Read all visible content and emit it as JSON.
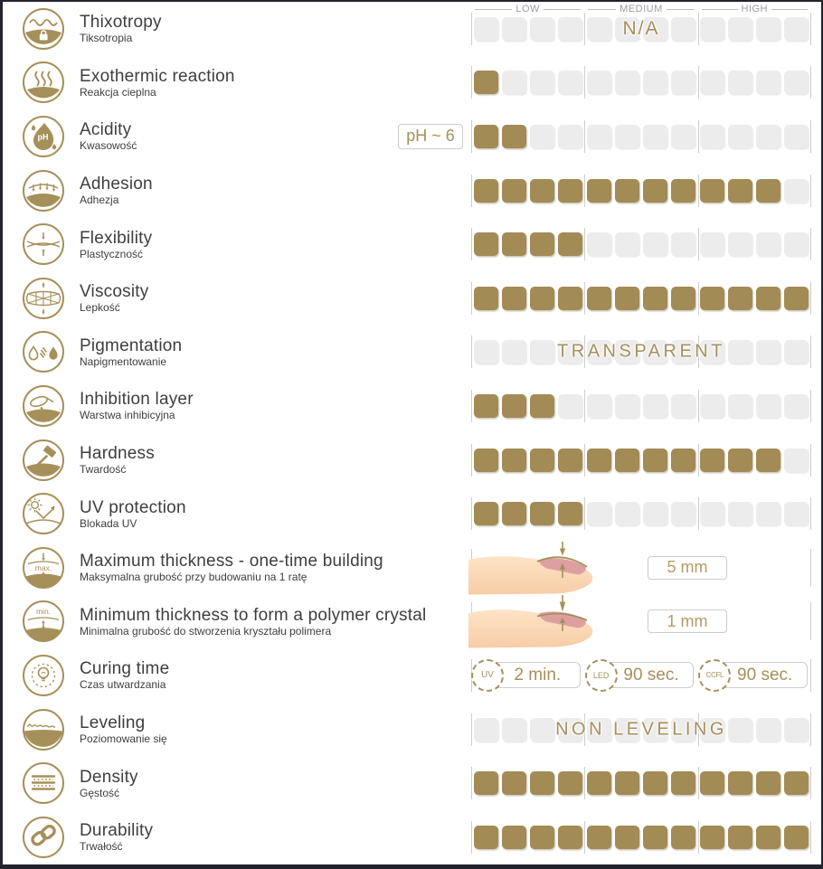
{
  "colors": {
    "gold": "#a28b55",
    "gold_text": "#a6905a",
    "empty_square": "#ececec",
    "title_text": "#3e3e3e",
    "header_text": "#9d9d9d",
    "divider": "#cdcdcd",
    "frame": "#23232e"
  },
  "header": {
    "low": "LOW",
    "medium": "MEDIUM",
    "high": "HIGH"
  },
  "icon_labels": {
    "acidity": "pH",
    "max": "max.",
    "min": "min."
  },
  "rows": [
    {
      "icon": "thixotropy-icon",
      "title": "Thixotropy",
      "subtitle": "Tiksotropia",
      "type": "bar",
      "filled": 0,
      "total": 12,
      "overlay": "N/A",
      "overlay_span": "medium"
    },
    {
      "icon": "exothermic-reaction-icon",
      "title": "Exothermic reaction",
      "subtitle": "Reakcja cieplna",
      "type": "bar",
      "filled": 1,
      "total": 12
    },
    {
      "icon": "acidity-icon",
      "title": "Acidity",
      "subtitle": "Kwasowość",
      "type": "bar",
      "filled": 2,
      "total": 12,
      "prefix_label": "pH ~ 6"
    },
    {
      "icon": "adhesion-icon",
      "title": "Adhesion",
      "subtitle": "Adhezja",
      "type": "bar",
      "filled": 11,
      "total": 12
    },
    {
      "icon": "flexibility-icon",
      "title": "Flexibility",
      "subtitle": "Plastyczność",
      "type": "bar",
      "filled": 4,
      "total": 12
    },
    {
      "icon": "viscosity-icon",
      "title": "Viscosity",
      "subtitle": "Lepkość",
      "type": "bar",
      "filled": 12,
      "total": 12
    },
    {
      "icon": "pigmentation-icon",
      "title": "Pigmentation",
      "subtitle": "Napigmentowanie",
      "type": "bar",
      "filled": 0,
      "total": 12,
      "overlay": "TRANSPARENT",
      "overlay_span": "full"
    },
    {
      "icon": "inhibition-layer-icon",
      "title": "Inhibition layer",
      "subtitle": "Warstwa inhibicyjna",
      "type": "bar",
      "filled": 3,
      "total": 12
    },
    {
      "icon": "hardness-icon",
      "title": "Hardness",
      "subtitle": "Twardość",
      "type": "bar",
      "filled": 11,
      "total": 12
    },
    {
      "icon": "uv-protection-icon",
      "title": "UV protection",
      "subtitle": "Blokada UV",
      "type": "bar",
      "filled": 4,
      "total": 12
    },
    {
      "icon": "max-thickness-icon",
      "title": "Maximum thickness - one-time building",
      "subtitle": "Maksymalna grubość przy budowaniu na 1 ratę",
      "type": "finger",
      "variant": "max",
      "value": "5 mm"
    },
    {
      "icon": "min-thickness-icon",
      "title": "Minimum thickness to form a polymer crystal",
      "subtitle": "Minimalna grubość do stworzenia kryształu polimera",
      "type": "finger",
      "variant": "min",
      "value": "1 mm"
    },
    {
      "icon": "curing-time-icon",
      "title": "Curing time",
      "subtitle": "Czas utwardzania",
      "type": "curing",
      "items": [
        {
          "lamp": "UV",
          "time": "2 min."
        },
        {
          "lamp": "LED",
          "time": "90 sec."
        },
        {
          "lamp": "CCFL",
          "time": "90 sec."
        }
      ]
    },
    {
      "icon": "leveling-icon",
      "title": "Leveling",
      "subtitle": "Poziomowanie się",
      "type": "bar",
      "filled": 0,
      "total": 12,
      "overlay": "NON LEVELING",
      "overlay_span": "full"
    },
    {
      "icon": "density-icon",
      "title": "Density",
      "subtitle": "Gęstość",
      "type": "bar",
      "filled": 12,
      "total": 12
    },
    {
      "icon": "durability-icon",
      "title": "Durability",
      "subtitle": "Trwałość",
      "type": "bar",
      "filled": 12,
      "total": 12
    }
  ],
  "chart_data": {
    "type": "table",
    "scale": {
      "groups": [
        "LOW",
        "MEDIUM",
        "HIGH"
      ],
      "segments_per_group": 4,
      "total_segments": 12
    },
    "rows": [
      {
        "property": "Thixotropy",
        "rating": "N/A"
      },
      {
        "property": "Exothermic reaction",
        "rating": 1
      },
      {
        "property": "Acidity",
        "rating": 2,
        "value": "pH ~ 6"
      },
      {
        "property": "Adhesion",
        "rating": 11
      },
      {
        "property": "Flexibility",
        "rating": 4
      },
      {
        "property": "Viscosity",
        "rating": 12
      },
      {
        "property": "Pigmentation",
        "rating": "TRANSPARENT"
      },
      {
        "property": "Inhibition layer",
        "rating": 3
      },
      {
        "property": "Hardness",
        "rating": 11
      },
      {
        "property": "UV protection",
        "rating": 4
      },
      {
        "property": "Maximum thickness - one-time building",
        "value": "5 mm"
      },
      {
        "property": "Minimum thickness to form a polymer crystal",
        "value": "1 mm"
      },
      {
        "property": "Curing time",
        "value": "UV 2 min., LED 90 sec., CCFL 90 sec."
      },
      {
        "property": "Leveling",
        "rating": "NON LEVELING"
      },
      {
        "property": "Density",
        "rating": 12
      },
      {
        "property": "Durability",
        "rating": 12
      }
    ]
  }
}
